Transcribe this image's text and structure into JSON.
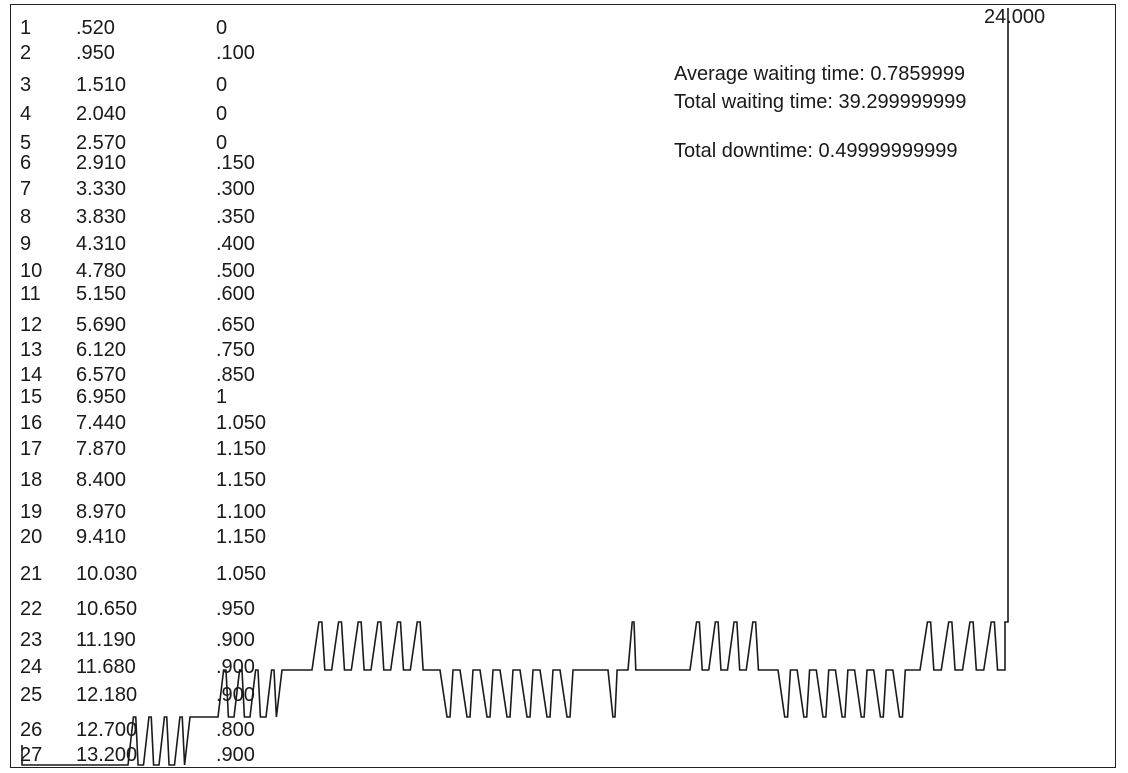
{
  "rows": [
    {
      "n": "1",
      "t": ".520",
      "w": "0"
    },
    {
      "n": "2",
      "t": ".950",
      "w": ".100"
    },
    {
      "n": "3",
      "t": "1.510",
      "w": "0"
    },
    {
      "n": "4",
      "t": "2.040",
      "w": "0"
    },
    {
      "n": "5",
      "t": "2.570",
      "w": "0"
    },
    {
      "n": "6",
      "t": "2.910",
      "w": ".150"
    },
    {
      "n": "7",
      "t": "3.330",
      "w": ".300"
    },
    {
      "n": "8",
      "t": "3.830",
      "w": ".350"
    },
    {
      "n": "9",
      "t": "4.310",
      "w": ".400"
    },
    {
      "n": "10",
      "t": "4.780",
      "w": ".500"
    },
    {
      "n": "11",
      "t": "5.150",
      "w": ".600"
    },
    {
      "n": "12",
      "t": "5.690",
      "w": ".650"
    },
    {
      "n": "13",
      "t": "6.120",
      "w": ".750"
    },
    {
      "n": "14",
      "t": "6.570",
      "w": ".850"
    },
    {
      "n": "15",
      "t": "6.950",
      "w": "1"
    },
    {
      "n": "16",
      "t": "7.440",
      "w": "1.050"
    },
    {
      "n": "17",
      "t": "7.870",
      "w": "1.150"
    },
    {
      "n": "18",
      "t": "8.400",
      "w": "1.150"
    },
    {
      "n": "19",
      "t": "8.970",
      "w": "1.100"
    },
    {
      "n": "20",
      "t": "9.410",
      "w": "1.150"
    },
    {
      "n": "21",
      "t": "10.030",
      "w": "1.050"
    },
    {
      "n": "22",
      "t": "10.650",
      "w": ".950"
    },
    {
      "n": "23",
      "t": "11.190",
      "w": ".900"
    },
    {
      "n": "24",
      "t": "11.680",
      "w": ".900"
    },
    {
      "n": "25",
      "t": "12.180",
      "w": ".900"
    },
    {
      "n": "26",
      "t": "12.700",
      "w": ".800"
    },
    {
      "n": "27",
      "t": "13.200",
      "w": ".900"
    }
  ],
  "stats": {
    "avg_waiting": "Average waiting time: 0.7859999",
    "total_waiting": "Total waiting time: 39.299999999",
    "total_downtime": "Total downtime: 0.49999999999"
  },
  "end_time": "24.000"
}
